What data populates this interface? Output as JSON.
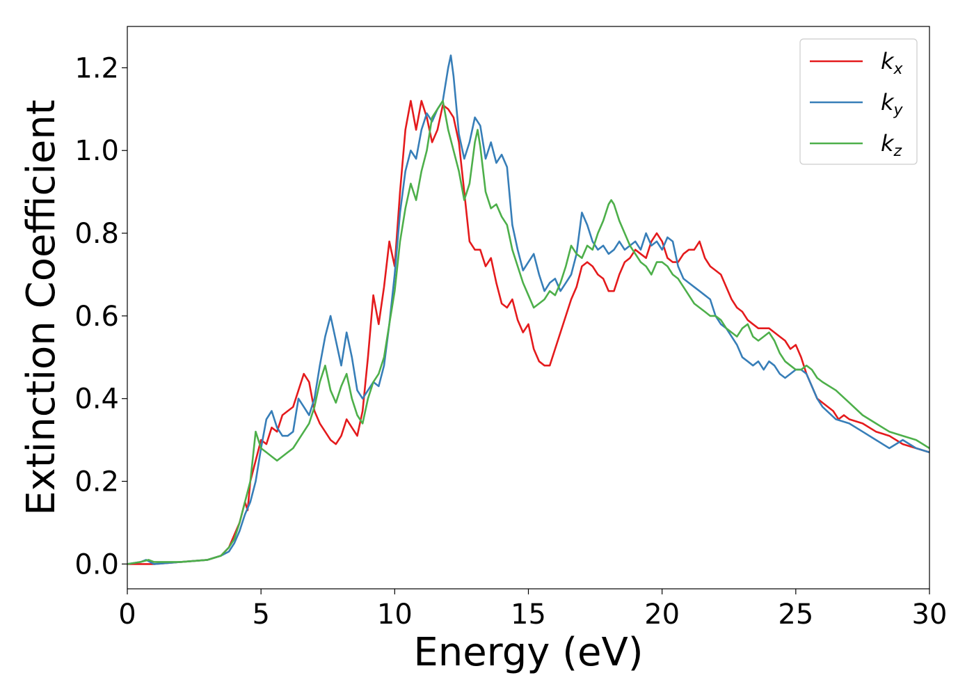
{
  "chart_data": {
    "type": "line",
    "title": "",
    "xlabel": "Energy (eV)",
    "ylabel": "Extinction Coefficient",
    "xlim": [
      0,
      30
    ],
    "ylim": [
      -0.06,
      1.3
    ],
    "xticks": [
      0,
      5,
      10,
      15,
      20,
      25,
      30
    ],
    "xtick_labels": [
      "0",
      "5",
      "10",
      "15",
      "20",
      "25",
      "30"
    ],
    "yticks": [
      0.0,
      0.2,
      0.4,
      0.6,
      0.8,
      1.0,
      1.2
    ],
    "ytick_labels": [
      "0.0",
      "0.2",
      "0.4",
      "0.6",
      "0.8",
      "1.0",
      "1.2"
    ],
    "grid": false,
    "legend_position": "top-right",
    "series": [
      {
        "name": "k",
        "subscript": "x",
        "color": "#e41a1c",
        "x": [
          0,
          1,
          2,
          3,
          3.5,
          3.8,
          4.0,
          4.2,
          4.4,
          4.5,
          4.6,
          4.8,
          5.0,
          5.2,
          5.4,
          5.6,
          5.8,
          6.0,
          6.2,
          6.4,
          6.6,
          6.8,
          7.0,
          7.2,
          7.4,
          7.6,
          7.8,
          8.0,
          8.2,
          8.4,
          8.6,
          8.8,
          9.0,
          9.2,
          9.4,
          9.6,
          9.8,
          10.0,
          10.2,
          10.4,
          10.6,
          10.8,
          11.0,
          11.2,
          11.4,
          11.6,
          11.8,
          12.0,
          12.2,
          12.4,
          12.6,
          12.8,
          13.0,
          13.2,
          13.4,
          13.6,
          13.8,
          14.0,
          14.2,
          14.4,
          14.6,
          14.8,
          15.0,
          15.2,
          15.4,
          15.6,
          15.8,
          16.0,
          16.2,
          16.4,
          16.6,
          16.8,
          17.0,
          17.2,
          17.4,
          17.6,
          17.8,
          18.0,
          18.2,
          18.4,
          18.6,
          18.8,
          19.0,
          19.2,
          19.4,
          19.6,
          19.8,
          20.0,
          20.2,
          20.4,
          20.6,
          20.8,
          21.0,
          21.2,
          21.4,
          21.6,
          21.8,
          22.0,
          22.2,
          22.4,
          22.6,
          22.8,
          23.0,
          23.2,
          23.4,
          23.6,
          23.8,
          24.0,
          24.2,
          24.4,
          24.6,
          24.8,
          25.0,
          25.2,
          25.4,
          25.6,
          25.8,
          26.0,
          26.2,
          26.4,
          26.6,
          26.8,
          27.0,
          27.5,
          28.0,
          28.5,
          29.0,
          29.5,
          30.0
        ],
        "y": [
          0.0,
          0.0,
          0.005,
          0.01,
          0.02,
          0.04,
          0.07,
          0.1,
          0.15,
          0.13,
          0.2,
          0.25,
          0.3,
          0.29,
          0.33,
          0.32,
          0.36,
          0.37,
          0.38,
          0.42,
          0.46,
          0.44,
          0.37,
          0.34,
          0.32,
          0.3,
          0.29,
          0.31,
          0.35,
          0.33,
          0.31,
          0.37,
          0.5,
          0.65,
          0.58,
          0.67,
          0.78,
          0.72,
          0.9,
          1.05,
          1.12,
          1.05,
          1.12,
          1.08,
          1.02,
          1.05,
          1.11,
          1.1,
          1.08,
          1.02,
          0.9,
          0.78,
          0.76,
          0.76,
          0.72,
          0.74,
          0.68,
          0.63,
          0.62,
          0.64,
          0.59,
          0.56,
          0.58,
          0.52,
          0.49,
          0.48,
          0.48,
          0.52,
          0.56,
          0.6,
          0.64,
          0.67,
          0.72,
          0.73,
          0.72,
          0.7,
          0.69,
          0.66,
          0.66,
          0.7,
          0.73,
          0.74,
          0.76,
          0.75,
          0.74,
          0.78,
          0.8,
          0.78,
          0.74,
          0.73,
          0.73,
          0.75,
          0.76,
          0.76,
          0.78,
          0.74,
          0.72,
          0.71,
          0.7,
          0.67,
          0.64,
          0.62,
          0.61,
          0.59,
          0.58,
          0.57,
          0.57,
          0.57,
          0.56,
          0.55,
          0.54,
          0.52,
          0.53,
          0.5,
          0.46,
          0.43,
          0.4,
          0.39,
          0.38,
          0.37,
          0.35,
          0.36,
          0.35,
          0.34,
          0.32,
          0.31,
          0.29,
          0.28,
          0.27
        ]
      },
      {
        "name": "k",
        "subscript": "y",
        "color": "#377eb8",
        "x": [
          0,
          0.5,
          0.7,
          1.0,
          2,
          3,
          3.5,
          3.8,
          4.0,
          4.2,
          4.4,
          4.6,
          4.8,
          5.0,
          5.2,
          5.4,
          5.6,
          5.8,
          6.0,
          6.2,
          6.4,
          6.6,
          6.8,
          7.0,
          7.2,
          7.4,
          7.6,
          7.8,
          8.0,
          8.2,
          8.4,
          8.6,
          8.8,
          9.0,
          9.2,
          9.4,
          9.6,
          9.8,
          10.0,
          10.2,
          10.4,
          10.6,
          10.8,
          11.0,
          11.2,
          11.4,
          11.6,
          11.8,
          12.0,
          12.1,
          12.2,
          12.4,
          12.6,
          12.8,
          13.0,
          13.2,
          13.4,
          13.6,
          13.8,
          14.0,
          14.2,
          14.4,
          14.6,
          14.8,
          15.0,
          15.2,
          15.4,
          15.6,
          15.8,
          16.0,
          16.2,
          16.4,
          16.6,
          16.8,
          17.0,
          17.2,
          17.4,
          17.6,
          17.8,
          18.0,
          18.2,
          18.4,
          18.6,
          18.8,
          19.0,
          19.2,
          19.4,
          19.6,
          19.8,
          20.0,
          20.2,
          20.4,
          20.6,
          20.8,
          21.0,
          21.2,
          21.4,
          21.6,
          21.8,
          22.0,
          22.2,
          22.4,
          22.6,
          22.8,
          23.0,
          23.2,
          23.4,
          23.6,
          23.8,
          24.0,
          24.2,
          24.4,
          24.6,
          24.8,
          25.0,
          25.2,
          25.4,
          25.6,
          25.8,
          26.0,
          26.5,
          27.0,
          27.5,
          28.0,
          28.5,
          29.0,
          29.5,
          30.0
        ],
        "y": [
          0.0,
          0.005,
          0.01,
          0.0,
          0.005,
          0.01,
          0.02,
          0.03,
          0.05,
          0.08,
          0.12,
          0.15,
          0.2,
          0.28,
          0.35,
          0.37,
          0.33,
          0.31,
          0.31,
          0.32,
          0.4,
          0.38,
          0.36,
          0.4,
          0.48,
          0.55,
          0.6,
          0.54,
          0.48,
          0.56,
          0.5,
          0.42,
          0.4,
          0.42,
          0.44,
          0.43,
          0.48,
          0.58,
          0.7,
          0.85,
          0.95,
          1.0,
          0.98,
          1.05,
          1.09,
          1.07,
          1.1,
          1.12,
          1.2,
          1.23,
          1.18,
          1.04,
          0.98,
          1.02,
          1.08,
          1.06,
          0.98,
          1.02,
          0.97,
          0.99,
          0.96,
          0.82,
          0.76,
          0.71,
          0.73,
          0.75,
          0.7,
          0.66,
          0.68,
          0.69,
          0.66,
          0.68,
          0.7,
          0.75,
          0.85,
          0.82,
          0.78,
          0.76,
          0.77,
          0.75,
          0.76,
          0.78,
          0.76,
          0.77,
          0.78,
          0.76,
          0.8,
          0.77,
          0.78,
          0.76,
          0.79,
          0.78,
          0.72,
          0.69,
          0.68,
          0.67,
          0.66,
          0.65,
          0.64,
          0.6,
          0.58,
          0.57,
          0.55,
          0.53,
          0.5,
          0.49,
          0.48,
          0.49,
          0.47,
          0.49,
          0.48,
          0.46,
          0.45,
          0.46,
          0.47,
          0.47,
          0.46,
          0.43,
          0.4,
          0.38,
          0.35,
          0.34,
          0.32,
          0.3,
          0.28,
          0.3,
          0.28,
          0.27
        ]
      },
      {
        "name": "k",
        "subscript": "z",
        "color": "#4daf4a",
        "x": [
          0,
          0.5,
          0.8,
          1.0,
          2,
          3,
          3.5,
          3.8,
          4.0,
          4.2,
          4.4,
          4.6,
          4.8,
          5.0,
          5.2,
          5.4,
          5.6,
          5.8,
          6.0,
          6.2,
          6.4,
          6.6,
          6.8,
          7.0,
          7.2,
          7.4,
          7.6,
          7.8,
          8.0,
          8.2,
          8.4,
          8.6,
          8.8,
          9.0,
          9.2,
          9.4,
          9.6,
          9.8,
          10.0,
          10.2,
          10.4,
          10.6,
          10.8,
          11.0,
          11.2,
          11.4,
          11.6,
          11.8,
          12.0,
          12.2,
          12.4,
          12.6,
          12.8,
          13.0,
          13.1,
          13.2,
          13.4,
          13.6,
          13.8,
          14.0,
          14.2,
          14.4,
          14.6,
          14.8,
          15.0,
          15.2,
          15.4,
          15.6,
          15.8,
          16.0,
          16.2,
          16.4,
          16.6,
          16.8,
          17.0,
          17.2,
          17.4,
          17.6,
          17.8,
          18.0,
          18.1,
          18.2,
          18.4,
          18.6,
          18.8,
          19.0,
          19.2,
          19.4,
          19.6,
          19.8,
          20.0,
          20.2,
          20.4,
          20.6,
          20.8,
          21.0,
          21.2,
          21.4,
          21.6,
          21.8,
          22.0,
          22.2,
          22.4,
          22.6,
          22.8,
          23.0,
          23.2,
          23.4,
          23.6,
          23.8,
          24.0,
          24.2,
          24.4,
          24.6,
          24.8,
          25.0,
          25.2,
          25.4,
          25.6,
          25.8,
          26.0,
          26.5,
          27.0,
          27.5,
          28.0,
          28.5,
          29.0,
          29.5,
          30.0
        ],
        "y": [
          0.0,
          0.005,
          0.01,
          0.005,
          0.005,
          0.01,
          0.02,
          0.04,
          0.06,
          0.1,
          0.15,
          0.2,
          0.32,
          0.28,
          0.27,
          0.26,
          0.25,
          0.26,
          0.27,
          0.28,
          0.3,
          0.32,
          0.34,
          0.38,
          0.44,
          0.48,
          0.42,
          0.39,
          0.43,
          0.46,
          0.4,
          0.36,
          0.34,
          0.4,
          0.44,
          0.46,
          0.5,
          0.58,
          0.66,
          0.78,
          0.86,
          0.92,
          0.88,
          0.95,
          1.0,
          1.08,
          1.1,
          1.12,
          1.05,
          1.0,
          0.95,
          0.88,
          0.92,
          1.02,
          1.05,
          1.01,
          0.9,
          0.86,
          0.87,
          0.84,
          0.82,
          0.76,
          0.72,
          0.68,
          0.65,
          0.62,
          0.63,
          0.64,
          0.66,
          0.65,
          0.68,
          0.72,
          0.77,
          0.75,
          0.74,
          0.77,
          0.76,
          0.8,
          0.83,
          0.87,
          0.88,
          0.87,
          0.83,
          0.8,
          0.77,
          0.75,
          0.73,
          0.72,
          0.7,
          0.73,
          0.73,
          0.72,
          0.7,
          0.69,
          0.67,
          0.65,
          0.63,
          0.62,
          0.61,
          0.6,
          0.6,
          0.59,
          0.57,
          0.56,
          0.55,
          0.57,
          0.58,
          0.55,
          0.54,
          0.55,
          0.56,
          0.54,
          0.51,
          0.49,
          0.48,
          0.47,
          0.47,
          0.48,
          0.47,
          0.45,
          0.44,
          0.42,
          0.39,
          0.36,
          0.34,
          0.32,
          0.31,
          0.3,
          0.28
        ]
      }
    ]
  }
}
